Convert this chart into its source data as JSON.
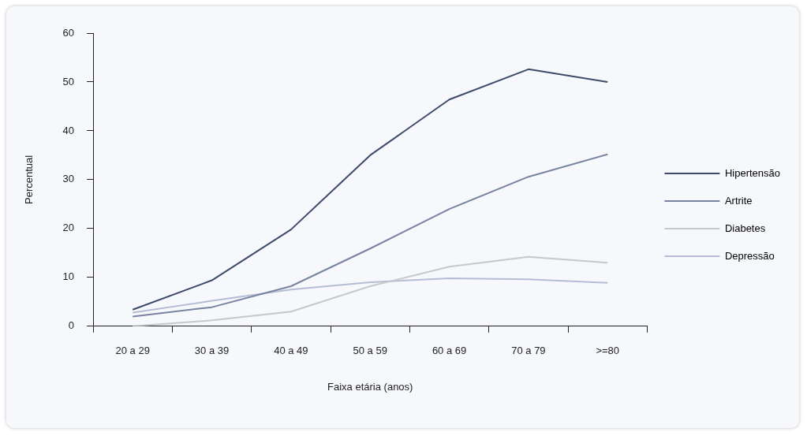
{
  "chart_data": {
    "type": "line",
    "xlabel": "Faixa etária (anos)",
    "ylabel": "Percentual",
    "categories": [
      "20 a 29",
      "30 a 39",
      "40 a 49",
      "50 a 59",
      "60 a 69",
      "70 a 79",
      ">=80"
    ],
    "ylim": [
      0,
      60
    ],
    "yticks": [
      0,
      10,
      20,
      30,
      40,
      50,
      60
    ],
    "grid": false,
    "legend": "right",
    "marker": "none",
    "line_style": "solid",
    "series": [
      {
        "name": "Hipertensão",
        "color": "#3d4a6b",
        "values": [
          3.4,
          9.4,
          19.8,
          35,
          46.4,
          52.6,
          50
        ]
      },
      {
        "name": "Artrite",
        "color": "#7783a0",
        "values": [
          2,
          3.9,
          8.2,
          15.9,
          24,
          30.6,
          35.2
        ]
      },
      {
        "name": "Diabetes",
        "color": "#c6c8cb",
        "values": [
          0,
          1.2,
          3,
          8.2,
          12.2,
          14.2,
          13
        ]
      },
      {
        "name": "Depressão",
        "color": "#b4bdd3",
        "values": [
          2.8,
          5.2,
          7.5,
          9,
          9.8,
          9.6,
          8.9
        ]
      }
    ]
  }
}
